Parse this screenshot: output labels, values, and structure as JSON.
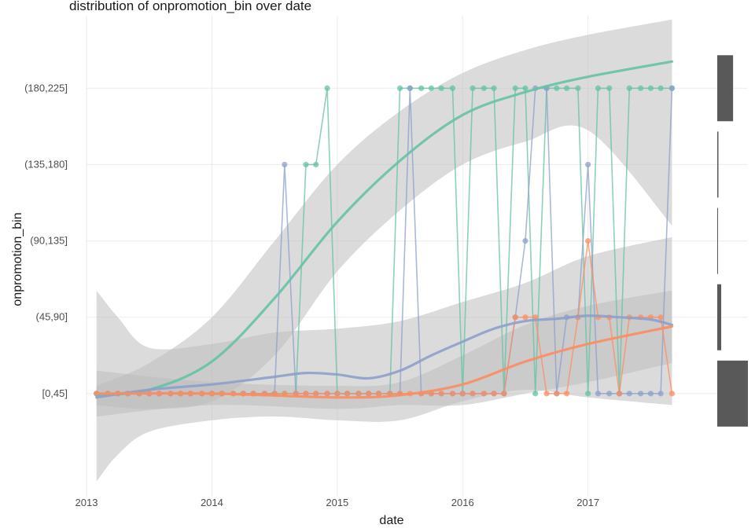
{
  "chart_data": {
    "type": "line",
    "title": "distribution of onpromotion_bin over  date",
    "xlabel": "date",
    "ylabel": "onpromotion_bin",
    "x_ticks": [
      "2013",
      "2014",
      "2015",
      "2016",
      "2017"
    ],
    "y_categories": [
      "[0,45]",
      "(45,90]",
      "(90,135]",
      "(135,180]",
      "(180,225]"
    ],
    "xlim": [
      2013.0,
      2017.78
    ],
    "ylim": [
      -1.35,
      4.95
    ],
    "grid": true,
    "legend": "none",
    "colors": {
      "series_green": "#66c2a5",
      "series_orange": "#fc8d62",
      "series_blue": "#8da0cb",
      "band": "#bdbdbd",
      "marginal_bar": "#595959",
      "grid": "#ebebeb"
    },
    "series": [
      {
        "color": "#66c2a5",
        "points": [
          [
            2013.08,
            0
          ],
          [
            2013.17,
            0
          ],
          [
            2013.25,
            0
          ],
          [
            2013.33,
            0
          ],
          [
            2013.42,
            0
          ],
          [
            2013.5,
            0
          ],
          [
            2013.58,
            0
          ],
          [
            2013.67,
            0
          ],
          [
            2013.75,
            0
          ],
          [
            2013.83,
            0
          ],
          [
            2013.92,
            0
          ],
          [
            2014.0,
            0
          ],
          [
            2014.08,
            0
          ],
          [
            2014.17,
            0
          ],
          [
            2014.25,
            0
          ],
          [
            2014.33,
            0
          ],
          [
            2014.42,
            0
          ],
          [
            2014.5,
            0
          ],
          [
            2014.58,
            0
          ],
          [
            2014.67,
            0
          ],
          [
            2014.75,
            3
          ],
          [
            2014.83,
            3
          ],
          [
            2014.92,
            4
          ],
          [
            2015.0,
            0
          ],
          [
            2015.08,
            0
          ],
          [
            2015.17,
            0
          ],
          [
            2015.25,
            0
          ],
          [
            2015.33,
            0
          ],
          [
            2015.42,
            0
          ],
          [
            2015.5,
            4
          ],
          [
            2015.58,
            4
          ],
          [
            2015.67,
            4
          ],
          [
            2015.75,
            4
          ],
          [
            2015.83,
            4
          ],
          [
            2015.92,
            4
          ],
          [
            2016.0,
            0
          ],
          [
            2016.08,
            4
          ],
          [
            2016.17,
            4
          ],
          [
            2016.25,
            4
          ],
          [
            2016.33,
            0
          ],
          [
            2016.42,
            4
          ],
          [
            2016.5,
            4
          ],
          [
            2016.58,
            0
          ],
          [
            2016.67,
            4
          ],
          [
            2016.75,
            4
          ],
          [
            2016.83,
            4
          ],
          [
            2016.92,
            4
          ],
          [
            2017.0,
            0
          ],
          [
            2017.08,
            4
          ],
          [
            2017.17,
            4
          ],
          [
            2017.25,
            0
          ],
          [
            2017.33,
            4
          ],
          [
            2017.42,
            4
          ],
          [
            2017.5,
            4
          ],
          [
            2017.58,
            4
          ],
          [
            2017.67,
            4
          ]
        ],
        "smooth": [
          [
            2013.08,
            -0.02
          ],
          [
            2013.5,
            0.05
          ],
          [
            2014.0,
            0.42
          ],
          [
            2014.5,
            1.25
          ],
          [
            2015.0,
            2.25
          ],
          [
            2015.5,
            3.05
          ],
          [
            2016.0,
            3.65
          ],
          [
            2016.5,
            3.95
          ],
          [
            2017.0,
            4.15
          ],
          [
            2017.67,
            4.35
          ]
        ],
        "band_upper": [
          [
            2013.08,
            0.1
          ],
          [
            2013.5,
            0.4
          ],
          [
            2014.0,
            1.0
          ],
          [
            2014.5,
            2.0
          ],
          [
            2015.0,
            3.0
          ],
          [
            2015.5,
            3.7
          ],
          [
            2016.0,
            4.2
          ],
          [
            2016.5,
            4.5
          ],
          [
            2017.0,
            4.7
          ],
          [
            2017.67,
            4.9
          ]
        ],
        "band_lower": [
          [
            2013.08,
            -0.15
          ],
          [
            2013.5,
            -0.2
          ],
          [
            2014.0,
            -0.1
          ],
          [
            2014.5,
            0.5
          ],
          [
            2015.0,
            1.6
          ],
          [
            2015.5,
            2.4
          ],
          [
            2016.0,
            3.0
          ],
          [
            2016.5,
            3.3
          ],
          [
            2017.0,
            3.45
          ],
          [
            2017.67,
            2.2
          ]
        ]
      },
      {
        "color": "#8da0cb",
        "points": [
          [
            2013.08,
            0
          ],
          [
            2013.17,
            0
          ],
          [
            2013.25,
            0
          ],
          [
            2013.33,
            0
          ],
          [
            2013.42,
            0
          ],
          [
            2013.5,
            0
          ],
          [
            2013.58,
            0
          ],
          [
            2013.67,
            0
          ],
          [
            2013.75,
            0
          ],
          [
            2013.83,
            0
          ],
          [
            2013.92,
            0
          ],
          [
            2014.0,
            0
          ],
          [
            2014.08,
            0
          ],
          [
            2014.17,
            0
          ],
          [
            2014.25,
            0
          ],
          [
            2014.33,
            0
          ],
          [
            2014.42,
            0
          ],
          [
            2014.5,
            0
          ],
          [
            2014.58,
            3
          ],
          [
            2014.67,
            0
          ],
          [
            2014.75,
            0
          ],
          [
            2014.83,
            0
          ],
          [
            2014.92,
            0
          ],
          [
            2015.0,
            0
          ],
          [
            2015.08,
            0
          ],
          [
            2015.17,
            0
          ],
          [
            2015.25,
            0
          ],
          [
            2015.33,
            0
          ],
          [
            2015.42,
            0
          ],
          [
            2015.5,
            0
          ],
          [
            2015.58,
            4
          ],
          [
            2015.67,
            0
          ],
          [
            2015.75,
            0
          ],
          [
            2015.83,
            0
          ],
          [
            2015.92,
            0
          ],
          [
            2016.0,
            0
          ],
          [
            2016.08,
            0
          ],
          [
            2016.17,
            0
          ],
          [
            2016.25,
            0
          ],
          [
            2016.33,
            0
          ],
          [
            2016.42,
            1
          ],
          [
            2016.5,
            2
          ],
          [
            2016.58,
            4
          ],
          [
            2016.67,
            4
          ],
          [
            2016.75,
            0
          ],
          [
            2016.83,
            1
          ],
          [
            2016.92,
            1
          ],
          [
            2017.0,
            3
          ],
          [
            2017.08,
            0
          ],
          [
            2017.17,
            0
          ],
          [
            2017.25,
            0
          ],
          [
            2017.33,
            0
          ],
          [
            2017.42,
            0
          ],
          [
            2017.5,
            0
          ],
          [
            2017.58,
            0
          ],
          [
            2017.67,
            4
          ]
        ],
        "smooth": [
          [
            2013.08,
            -0.05
          ],
          [
            2013.5,
            0.05
          ],
          [
            2014.0,
            0.12
          ],
          [
            2014.5,
            0.22
          ],
          [
            2014.75,
            0.27
          ],
          [
            2015.0,
            0.25
          ],
          [
            2015.25,
            0.2
          ],
          [
            2015.5,
            0.3
          ],
          [
            2015.75,
            0.5
          ],
          [
            2016.0,
            0.68
          ],
          [
            2016.25,
            0.85
          ],
          [
            2016.5,
            0.95
          ],
          [
            2016.75,
            0.98
          ],
          [
            2017.0,
            1.02
          ],
          [
            2017.25,
            1.0
          ],
          [
            2017.5,
            0.97
          ],
          [
            2017.67,
            0.9
          ]
        ],
        "band_upper": [
          [
            2013.08,
            1.35
          ],
          [
            2013.25,
            1.0
          ],
          [
            2013.5,
            0.6
          ],
          [
            2014.0,
            0.65
          ],
          [
            2014.5,
            0.8
          ],
          [
            2015.0,
            0.85
          ],
          [
            2015.5,
            0.95
          ],
          [
            2016.0,
            1.2
          ],
          [
            2016.5,
            1.45
          ],
          [
            2017.0,
            1.8
          ],
          [
            2017.67,
            2.05
          ]
        ],
        "band_lower": [
          [
            2013.08,
            -1.15
          ],
          [
            2013.25,
            -0.8
          ],
          [
            2013.5,
            -0.5
          ],
          [
            2014.0,
            -0.35
          ],
          [
            2014.5,
            -0.3
          ],
          [
            2015.0,
            -0.35
          ],
          [
            2015.5,
            -0.35
          ],
          [
            2016.0,
            -0.1
          ],
          [
            2016.5,
            0.05
          ],
          [
            2017.0,
            -0.05
          ],
          [
            2017.67,
            -0.15
          ]
        ]
      },
      {
        "color": "#fc8d62",
        "points": [
          [
            2013.08,
            0
          ],
          [
            2013.17,
            0
          ],
          [
            2013.25,
            0
          ],
          [
            2013.33,
            0
          ],
          [
            2013.42,
            0
          ],
          [
            2013.5,
            0
          ],
          [
            2013.58,
            0
          ],
          [
            2013.67,
            0
          ],
          [
            2013.75,
            0
          ],
          [
            2013.83,
            0
          ],
          [
            2013.92,
            0
          ],
          [
            2014.0,
            0
          ],
          [
            2014.08,
            0
          ],
          [
            2014.17,
            0
          ],
          [
            2014.25,
            0
          ],
          [
            2014.33,
            0
          ],
          [
            2014.42,
            0
          ],
          [
            2014.5,
            0
          ],
          [
            2014.58,
            0
          ],
          [
            2014.67,
            0
          ],
          [
            2014.75,
            0
          ],
          [
            2014.83,
            0
          ],
          [
            2014.92,
            0
          ],
          [
            2015.0,
            0
          ],
          [
            2015.08,
            0
          ],
          [
            2015.17,
            0
          ],
          [
            2015.25,
            0
          ],
          [
            2015.33,
            0
          ],
          [
            2015.42,
            0
          ],
          [
            2015.5,
            0
          ],
          [
            2015.58,
            0
          ],
          [
            2015.67,
            0
          ],
          [
            2015.75,
            0
          ],
          [
            2015.83,
            0
          ],
          [
            2015.92,
            0
          ],
          [
            2016.0,
            0
          ],
          [
            2016.08,
            0
          ],
          [
            2016.17,
            0
          ],
          [
            2016.25,
            0
          ],
          [
            2016.33,
            0
          ],
          [
            2016.42,
            1
          ],
          [
            2016.5,
            1
          ],
          [
            2016.58,
            1
          ],
          [
            2016.67,
            0
          ],
          [
            2016.75,
            0
          ],
          [
            2016.83,
            0
          ],
          [
            2016.92,
            1
          ],
          [
            2017.0,
            2
          ],
          [
            2017.08,
            1
          ],
          [
            2017.17,
            1
          ],
          [
            2017.25,
            0
          ],
          [
            2017.33,
            1
          ],
          [
            2017.42,
            1
          ],
          [
            2017.5,
            1
          ],
          [
            2017.58,
            1
          ],
          [
            2017.67,
            0
          ]
        ],
        "smooth": [
          [
            2013.08,
            0
          ],
          [
            2014.0,
            0
          ],
          [
            2015.0,
            -0.05
          ],
          [
            2015.5,
            -0.02
          ],
          [
            2016.0,
            0.12
          ],
          [
            2016.5,
            0.42
          ],
          [
            2017.0,
            0.65
          ],
          [
            2017.67,
            0.88
          ]
        ],
        "band_upper": [
          [
            2013.08,
            0.3
          ],
          [
            2014.0,
            0.15
          ],
          [
            2015.0,
            0.1
          ],
          [
            2015.5,
            0.15
          ],
          [
            2016.0,
            0.5
          ],
          [
            2016.5,
            0.9
          ],
          [
            2017.0,
            1.15
          ],
          [
            2017.67,
            1.35
          ]
        ],
        "band_lower": [
          [
            2013.08,
            -0.3
          ],
          [
            2014.0,
            -0.15
          ],
          [
            2015.0,
            -0.2
          ],
          [
            2015.5,
            -0.15
          ],
          [
            2016.0,
            -0.15
          ],
          [
            2016.5,
            0.0
          ],
          [
            2017.0,
            0.15
          ],
          [
            2017.67,
            0.4
          ]
        ]
      }
    ],
    "marginal_distribution": [
      {
        "category": "[0,45]",
        "value": 31
      },
      {
        "category": "(45,90]",
        "value": 4
      },
      {
        "category": "(90,135]",
        "value": 0.5
      },
      {
        "category": "(135,180]",
        "value": 1.2
      },
      {
        "category": "(180,225]",
        "value": 16
      }
    ]
  }
}
